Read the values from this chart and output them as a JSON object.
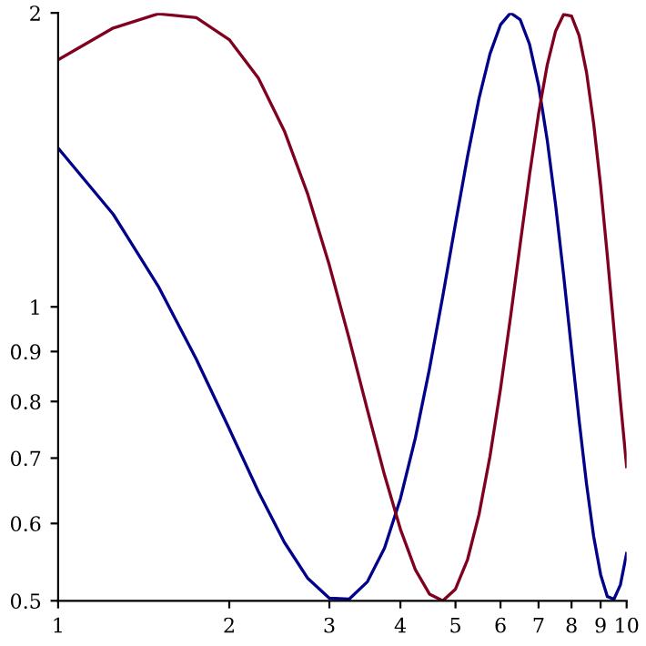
{
  "chart_data": {
    "type": "line",
    "log": "xy",
    "xlim": [
      1,
      10
    ],
    "ylim": [
      0.5,
      2
    ],
    "xticks": [
      1,
      2,
      3,
      4,
      5,
      6,
      7,
      8,
      9,
      10
    ],
    "yticks": [
      0.5,
      0.6,
      0.7,
      0.8,
      0.9,
      1,
      2
    ],
    "grid": false,
    "marker": "none",
    "line_style": "solid",
    "x": [
      1,
      1.25,
      1.5,
      1.75,
      2,
      2.25,
      2.5,
      2.75,
      3,
      3.25,
      3.5,
      3.75,
      4,
      4.25,
      4.5,
      4.75,
      5,
      5.25,
      5.5,
      5.75,
      6,
      6.25,
      6.5,
      6.75,
      7,
      7.25,
      7.5,
      7.75,
      8,
      8.25,
      8.5,
      8.75,
      9,
      9.25,
      9.5,
      9.75,
      10
    ],
    "series": [
      {
        "color": "#00008b",
        "values": [
          1.454,
          1.244,
          1.05,
          0.884,
          0.75,
          0.647,
          0.574,
          0.527,
          0.503,
          0.502,
          0.523,
          0.566,
          0.636,
          0.734,
          0.864,
          1.026,
          1.217,
          1.426,
          1.635,
          1.816,
          1.945,
          2.0,
          1.968,
          1.857,
          1.687,
          1.482,
          1.272,
          1.076,
          0.904,
          0.765,
          0.659,
          0.582,
          0.532,
          0.505,
          0.502,
          0.519,
          0.559
        ]
      },
      {
        "color": "#800020",
        "values": [
          1.791,
          1.93,
          1.996,
          1.978,
          1.878,
          1.715,
          1.514,
          1.303,
          1.103,
          0.928,
          0.784,
          0.673,
          0.592,
          0.538,
          0.508,
          0.5,
          0.514,
          0.551,
          0.613,
          0.703,
          0.824,
          0.977,
          1.161,
          1.366,
          1.577,
          1.769,
          1.916,
          1.993,
          1.985,
          1.896,
          1.739,
          1.541,
          1.331,
          1.127,
          0.949,
          0.801,
          0.686
        ]
      }
    ]
  }
}
